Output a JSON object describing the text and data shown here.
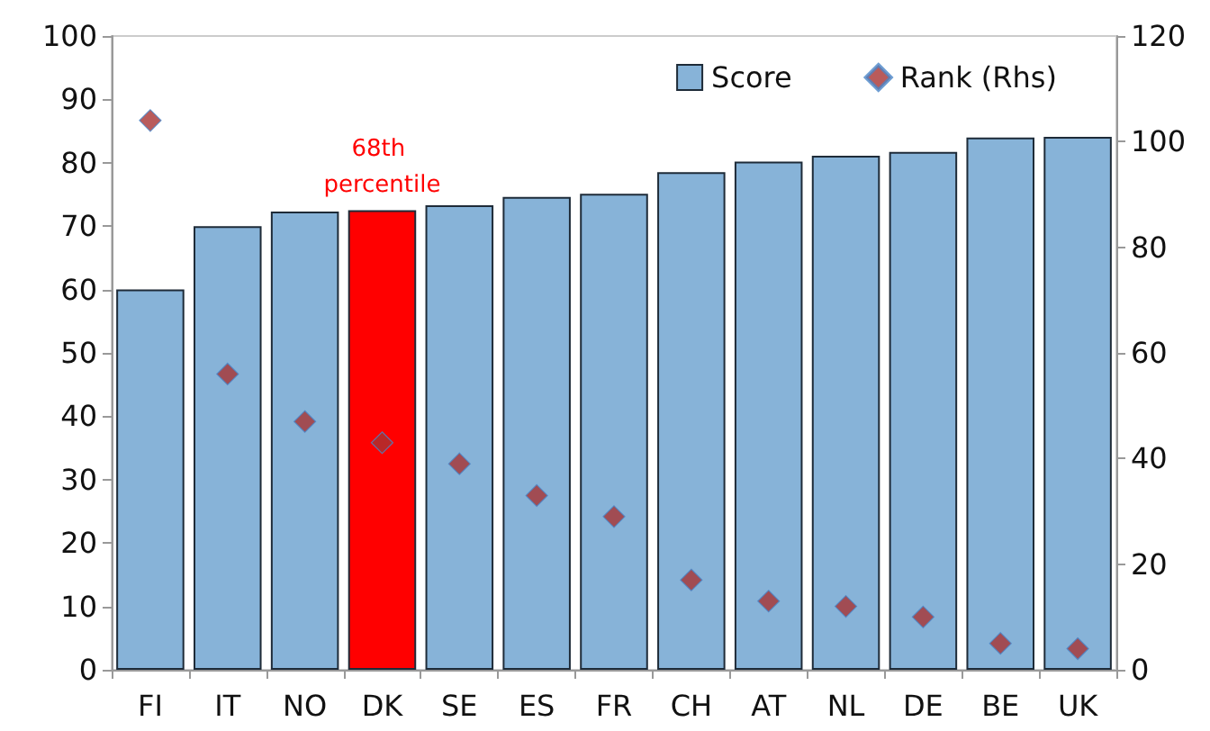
{
  "chart_data": {
    "type": "bar",
    "categories": [
      "FI",
      "IT",
      "NO",
      "DK",
      "SE",
      "ES",
      "FR",
      "CH",
      "AT",
      "NL",
      "DE",
      "BE",
      "UK"
    ],
    "series": [
      {
        "name": "Score",
        "colors": [
          "#87b3d8",
          "#87b3d8",
          "#87b3d8",
          "#ff0000",
          "#87b3d8",
          "#87b3d8",
          "#87b3d8",
          "#87b3d8",
          "#87b3d8",
          "#87b3d8",
          "#87b3d8",
          "#87b3d8",
          "#87b3d8"
        ],
        "values": [
          60,
          70,
          72.3,
          72.5,
          73.3,
          74.6,
          75.1,
          78.5,
          80.2,
          81.1,
          81.7,
          84,
          84.1
        ]
      },
      {
        "name": "Rank (Rhs)",
        "type": "scatter",
        "axis": "y2",
        "marker": "diamond",
        "color": "#a83232",
        "values": [
          104,
          56,
          47,
          43,
          39,
          33,
          29,
          17,
          13,
          12,
          10,
          5,
          4
        ]
      }
    ],
    "ylim": [
      0,
      100
    ],
    "yticks": [
      0,
      10,
      20,
      30,
      40,
      50,
      60,
      70,
      80,
      90,
      100
    ],
    "y2lim": [
      0,
      120
    ],
    "y2ticks": [
      0,
      20,
      40,
      60,
      80,
      100,
      120
    ],
    "annotations": [
      {
        "text": "68th percentile",
        "x": "DK",
        "y": 72.5
      }
    ],
    "legend": "top right",
    "grid": false
  }
}
